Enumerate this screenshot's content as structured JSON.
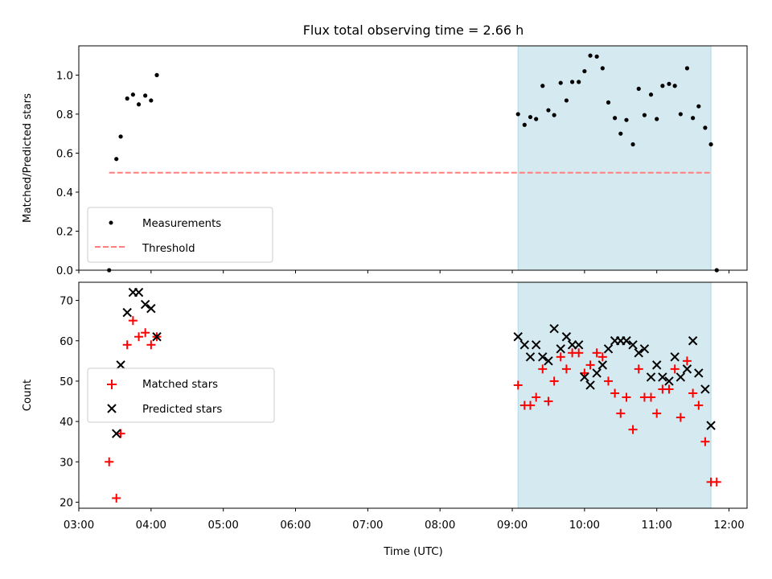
{
  "chart_data": {
    "type": "scatter",
    "title": "Flux total observing time = 2.66 h",
    "xlabel": "Time (UTC)",
    "x_ticks": [
      "03:00",
      "04:00",
      "05:00",
      "06:00",
      "07:00",
      "08:00",
      "09:00",
      "10:00",
      "11:00",
      "12:00"
    ],
    "xlim_hours": [
      3.0,
      12.25
    ],
    "highlight_span_hours": [
      9.08,
      11.75
    ],
    "colors": {
      "highlight": "#d4eaf0",
      "highlight_edge": "#add8e6",
      "threshold": "#ff7f7f",
      "matched": "#ff0000",
      "predicted": "#000000",
      "measurement": "#000000"
    },
    "panels": [
      {
        "id": "ratio",
        "ylabel": "Matched/Predicted stars",
        "ylim": [
          0.0,
          1.15
        ],
        "y_ticks": [
          "0.0",
          "0.2",
          "0.4",
          "0.6",
          "0.8",
          "1.0"
        ],
        "legend_location": "lower-left",
        "threshold": {
          "value": 0.5,
          "x_range_hours": [
            3.42,
            11.75
          ]
        },
        "series": [
          {
            "name": "Measurements",
            "marker": "dot",
            "x_hours": [
              3.42,
              3.52,
              3.58,
              3.67,
              3.75,
              3.83,
              3.92,
              4.0,
              4.08,
              9.08,
              9.17,
              9.25,
              9.33,
              9.42,
              9.5,
              9.58,
              9.67,
              9.75,
              9.83,
              9.92,
              10.0,
              10.08,
              10.17,
              10.25,
              10.33,
              10.42,
              10.5,
              10.58,
              10.67,
              10.75,
              10.83,
              10.92,
              11.0,
              11.08,
              11.17,
              11.25,
              11.33,
              11.42,
              11.5,
              11.58,
              11.67,
              11.75,
              11.83
            ],
            "values": [
              0.0,
              0.57,
              0.685,
              0.88,
              0.9,
              0.85,
              0.895,
              0.87,
              1.0,
              0.8,
              0.745,
              0.785,
              0.775,
              0.945,
              0.82,
              0.795,
              0.96,
              0.87,
              0.965,
              0.965,
              1.02,
              1.1,
              1.095,
              1.035,
              0.86,
              0.78,
              0.7,
              0.77,
              0.645,
              0.93,
              0.795,
              0.9,
              0.775,
              0.945,
              0.955,
              0.945,
              0.8,
              1.035,
              0.78,
              0.84,
              0.73,
              0.645,
              0.0
            ]
          }
        ]
      },
      {
        "id": "counts",
        "ylabel": "Count",
        "ylim": [
          18.5,
          74.5
        ],
        "y_ticks": [
          "20",
          "30",
          "40",
          "50",
          "60",
          "70"
        ],
        "legend_location": "center-left",
        "series": [
          {
            "name": "Matched stars",
            "marker": "plus",
            "x_hours": [
              3.42,
              3.52,
              3.58,
              3.67,
              3.75,
              3.83,
              3.92,
              4.0,
              4.08,
              9.08,
              9.17,
              9.25,
              9.33,
              9.42,
              9.5,
              9.58,
              9.67,
              9.75,
              9.83,
              9.92,
              10.0,
              10.08,
              10.17,
              10.25,
              10.33,
              10.42,
              10.5,
              10.58,
              10.67,
              10.75,
              10.83,
              10.92,
              11.0,
              11.08,
              11.17,
              11.25,
              11.33,
              11.42,
              11.5,
              11.58,
              11.67,
              11.75,
              11.83
            ],
            "values": [
              30,
              21,
              37,
              59,
              65,
              61,
              62,
              59,
              61,
              49,
              44,
              44,
              46,
              53,
              45,
              50,
              56,
              53,
              57,
              57,
              52,
              54,
              57,
              56,
              50,
              47,
              42,
              46,
              38,
              53,
              46,
              46,
              42,
              48,
              48,
              53,
              41,
              55,
              47,
              44,
              35,
              25,
              25
            ]
          },
          {
            "name": "Predicted stars",
            "marker": "x",
            "x_hours": [
              3.52,
              3.58,
              3.67,
              3.75,
              3.83,
              3.92,
              4.0,
              4.08,
              9.08,
              9.17,
              9.25,
              9.33,
              9.42,
              9.5,
              9.58,
              9.67,
              9.75,
              9.83,
              9.92,
              10.0,
              10.08,
              10.17,
              10.25,
              10.33,
              10.42,
              10.5,
              10.58,
              10.67,
              10.75,
              10.83,
              10.92,
              11.0,
              11.08,
              11.17,
              11.25,
              11.33,
              11.42,
              11.5,
              11.58,
              11.67,
              11.75
            ],
            "values": [
              37,
              54,
              67,
              72,
              72,
              69,
              68,
              61,
              61,
              59,
              56,
              59,
              56,
              55,
              63,
              58,
              61,
              59,
              59,
              51,
              49,
              52,
              54,
              58,
              60,
              60,
              60,
              59,
              57,
              58,
              51,
              54,
              51,
              50,
              56,
              51,
              53,
              60,
              52,
              48,
              39
            ]
          }
        ]
      }
    ]
  }
}
